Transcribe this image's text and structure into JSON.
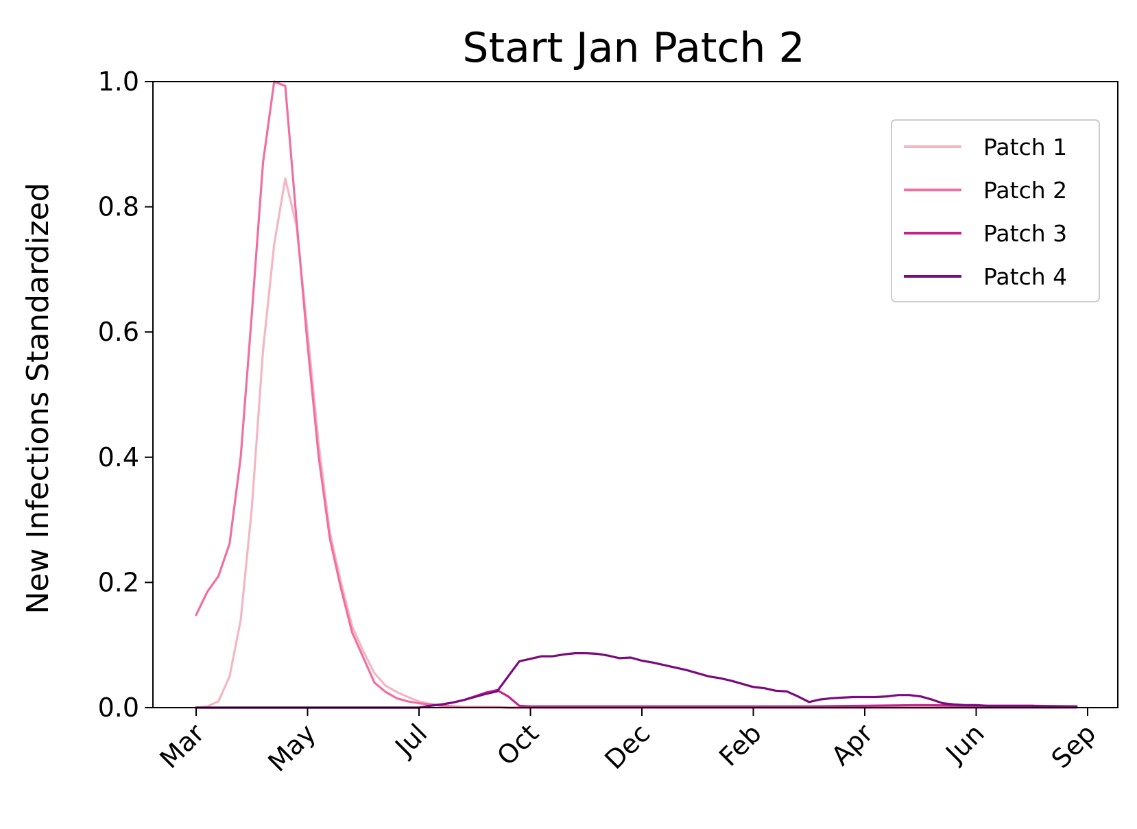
{
  "chart_data": {
    "type": "line",
    "title": "Start Jan Patch 2",
    "xlabel": "",
    "ylabel": "New Infections Standardized",
    "x_tick_labels": [
      "Mar",
      "May",
      "Jul",
      "Oct",
      "Dec",
      "Feb",
      "Apr",
      "Jun",
      "Sep"
    ],
    "ylim": [
      0,
      1
    ],
    "y_ticks": [
      0.0,
      0.2,
      0.4,
      0.6,
      0.8,
      1.0
    ],
    "y_tick_labels": [
      "0.0",
      "0.2",
      "0.4",
      "0.6",
      "0.8",
      "1.0"
    ],
    "grid": false,
    "legend_position": "top-right",
    "x_unit": "weekly index (0 = Mar tick, 80 = Sep tick, ~10 weeks per tick interval)",
    "series": [
      {
        "name": "Patch 1",
        "color": "#f4b6c2",
        "x": [
          0,
          1,
          2,
          3,
          4,
          5,
          6,
          7,
          8,
          9,
          10,
          11,
          12,
          13,
          14,
          15,
          16,
          17,
          18,
          19,
          20,
          21,
          22,
          23,
          24,
          25,
          26,
          27,
          28,
          29,
          30,
          35,
          40,
          45,
          50,
          55,
          60,
          65,
          70,
          75,
          79
        ],
        "values": [
          0.0,
          0.002,
          0.01,
          0.05,
          0.14,
          0.32,
          0.57,
          0.74,
          0.845,
          0.77,
          0.6,
          0.42,
          0.28,
          0.2,
          0.13,
          0.09,
          0.055,
          0.035,
          0.025,
          0.017,
          0.01,
          0.006,
          0.004,
          0.002,
          0.001,
          0.001,
          0.001,
          0.001,
          0.0,
          0.0,
          0.0,
          0.0,
          0.0,
          0.0,
          0.0,
          0.0,
          0.0,
          0.0,
          0.0,
          0.0,
          0.0
        ]
      },
      {
        "name": "Patch 2",
        "color": "#f06fa0",
        "x": [
          0,
          1,
          2,
          3,
          4,
          5,
          6,
          7,
          8,
          9,
          10,
          11,
          12,
          13,
          14,
          15,
          16,
          17,
          18,
          19,
          20,
          21,
          22,
          23,
          24,
          25,
          26,
          27,
          28,
          29,
          30,
          35,
          40,
          45,
          50,
          55,
          60,
          65,
          70,
          75,
          79
        ],
        "values": [
          0.148,
          0.185,
          0.21,
          0.262,
          0.4,
          0.63,
          0.87,
          1.0,
          0.993,
          0.78,
          0.58,
          0.4,
          0.27,
          0.19,
          0.12,
          0.08,
          0.04,
          0.025,
          0.015,
          0.01,
          0.007,
          0.005,
          0.003,
          0.002,
          0.001,
          0.001,
          0.001,
          0.001,
          0.0,
          0.0,
          0.0,
          0.0,
          0.0,
          0.0,
          0.0,
          0.0,
          0.0,
          0.0,
          0.0,
          0.0,
          0.0
        ]
      },
      {
        "name": "Patch 3",
        "color": "#c4228c",
        "x": [
          0,
          10,
          20,
          21,
          22,
          23,
          24,
          25,
          26,
          27,
          28,
          29,
          30,
          35,
          40,
          45,
          50,
          55,
          60,
          65,
          70,
          75,
          79
        ],
        "values": [
          0.0,
          0.0,
          0.0,
          0.003,
          0.005,
          0.008,
          0.012,
          0.018,
          0.024,
          0.028,
          0.018,
          0.003,
          0.002,
          0.002,
          0.002,
          0.002,
          0.002,
          0.002,
          0.003,
          0.004,
          0.003,
          0.003,
          0.002
        ]
      },
      {
        "name": "Patch 4",
        "color": "#7a0a7e",
        "x": [
          0,
          10,
          20,
          21,
          22,
          23,
          24,
          25,
          26,
          27,
          28,
          29,
          30,
          31,
          32,
          33,
          34,
          35,
          36,
          37,
          38,
          39,
          40,
          41,
          42,
          43,
          44,
          45,
          46,
          47,
          48,
          49,
          50,
          51,
          52,
          53,
          54,
          55,
          56,
          57,
          58,
          59,
          60,
          61,
          62,
          63,
          64,
          65,
          66,
          67,
          68,
          69,
          70,
          71,
          72,
          73,
          74,
          75,
          76,
          77,
          78,
          79
        ],
        "values": [
          0.0,
          0.0,
          0.0,
          0.003,
          0.005,
          0.008,
          0.012,
          0.017,
          0.022,
          0.026,
          0.05,
          0.074,
          0.078,
          0.082,
          0.082,
          0.085,
          0.087,
          0.087,
          0.086,
          0.083,
          0.079,
          0.08,
          0.075,
          0.072,
          0.068,
          0.064,
          0.06,
          0.055,
          0.05,
          0.047,
          0.043,
          0.038,
          0.033,
          0.031,
          0.027,
          0.026,
          0.018,
          0.009,
          0.013,
          0.015,
          0.016,
          0.017,
          0.017,
          0.017,
          0.018,
          0.02,
          0.02,
          0.018,
          0.013,
          0.007,
          0.005,
          0.004,
          0.004,
          0.003,
          0.003,
          0.003,
          0.003,
          0.003,
          0.002,
          0.002,
          0.002,
          0.002
        ]
      }
    ]
  }
}
